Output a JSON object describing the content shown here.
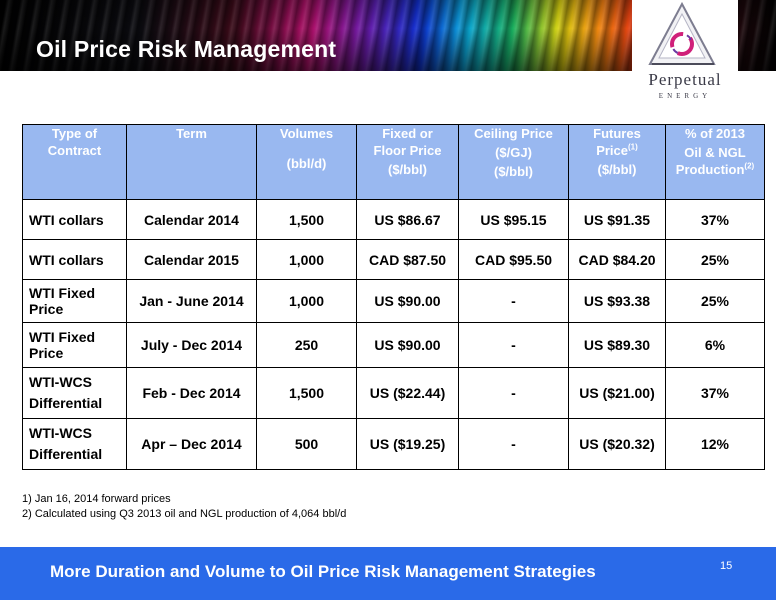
{
  "title": "Oil Price Risk Management",
  "logo": {
    "wordmark": "Perpetual",
    "sub": "ENERGY"
  },
  "table": {
    "headers": [
      {
        "lines": [
          "Type of",
          "Contract"
        ],
        "sup": ""
      },
      {
        "lines": [
          "Term"
        ],
        "sup": ""
      },
      {
        "lines": [
          "Volumes",
          "",
          "(bbl/d)"
        ],
        "sup": ""
      },
      {
        "lines": [
          "Fixed or",
          "Floor Price",
          "($/bbl)"
        ],
        "sup": ""
      },
      {
        "lines": [
          "Ceiling Price",
          "($/GJ)",
          "($/bbl)"
        ],
        "sup": ""
      },
      {
        "lines": [
          "Futures",
          "Price",
          "($/bbl)"
        ],
        "sup": "(1)"
      },
      {
        "lines": [
          "% of 2013",
          "Oil & NGL",
          "Production"
        ],
        "sup": "(2)"
      }
    ],
    "rows": [
      [
        "WTI collars",
        "Calendar 2014",
        "1,500",
        "US $86.67",
        "US $95.15",
        "US $91.35",
        "37%"
      ],
      [
        "WTI collars",
        "Calendar 2015",
        "1,000",
        "CAD $87.50",
        "CAD $95.50",
        "CAD $84.20",
        "25%"
      ],
      [
        "WTI Fixed Price",
        "Jan - June 2014",
        "1,000",
        "US $90.00",
        "-",
        "US $93.38",
        "25%"
      ],
      [
        "WTI Fixed Price",
        "July - Dec 2014",
        "250",
        "US $90.00",
        "-",
        "US $89.30",
        "6%"
      ],
      [
        "WTI-WCS Differential",
        "Feb - Dec 2014",
        "1,500",
        "US ($22.44)",
        "-",
        "US ($21.00)",
        "37%"
      ],
      [
        "WTI-WCS Differential",
        "Apr – Dec 2014",
        "500",
        "US ($19.25)",
        "-",
        "US ($20.32)",
        "12%"
      ]
    ]
  },
  "footnotes": [
    "1)  Jan 16, 2014 forward prices",
    "2)  Calculated using Q3 2013 oil and NGL production of 4,064 bbl/d"
  ],
  "footer": {
    "text": "More Duration and Volume to Oil Price Risk Management Strategies",
    "page": "15"
  }
}
